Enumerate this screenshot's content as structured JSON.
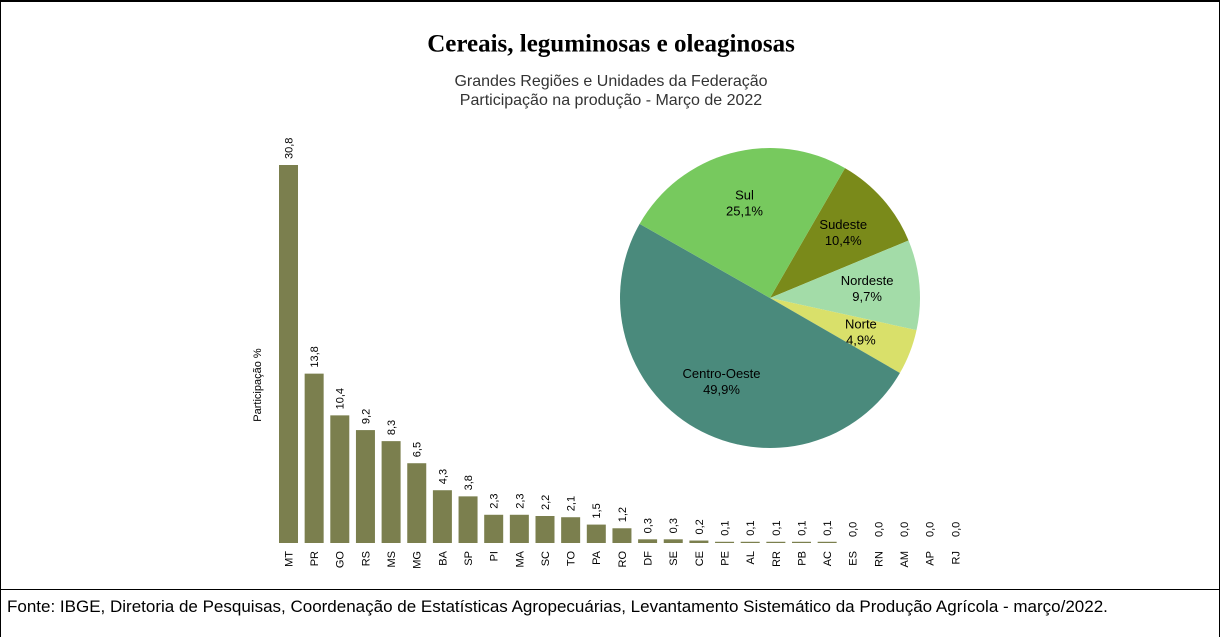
{
  "header": {
    "title": "Cereais, leguminosas e oleaginosas",
    "subtitle": [
      "Grandes Regiões e Unidades da Federação",
      "Participação na produção - Março de 2022"
    ]
  },
  "chart_data": [
    {
      "type": "bar",
      "ylabel": "Participação %",
      "color": "#7b7f4e",
      "categories": [
        "MT",
        "PR",
        "GO",
        "RS",
        "MS",
        "MG",
        "BA",
        "SP",
        "PI",
        "MA",
        "SC",
        "TO",
        "PA",
        "RO",
        "DF",
        "SE",
        "CE",
        "PE",
        "AL",
        "RR",
        "PB",
        "AC",
        "ES",
        "RN",
        "AM",
        "AP",
        "RJ"
      ],
      "values": [
        30.8,
        13.8,
        10.4,
        9.2,
        8.3,
        6.5,
        4.3,
        3.8,
        2.3,
        2.3,
        2.2,
        2.1,
        1.5,
        1.2,
        0.3,
        0.3,
        0.2,
        0.1,
        0.1,
        0.1,
        0.1,
        0.1,
        0.0,
        0.0,
        0.0,
        0.0,
        0.0
      ],
      "value_labels": [
        "30,8",
        "13,8",
        "10,4",
        "9,2",
        "8,3",
        "6,5",
        "4,3",
        "3,8",
        "2,3",
        "2,3",
        "2,2",
        "2,1",
        "1,5",
        "1,2",
        "0,3",
        "0,3",
        "0,2",
        "0,1",
        "0,1",
        "0,1",
        "0,1",
        "0,1",
        "0,0",
        "0,0",
        "0,0",
        "0,0",
        "0,0"
      ]
    },
    {
      "type": "pie",
      "categories": [
        "Sudeste",
        "Nordeste",
        "Norte",
        "Centro-Oeste",
        "Sul"
      ],
      "values": [
        10.4,
        9.7,
        4.9,
        49.9,
        25.1
      ],
      "value_labels": [
        "10,4%",
        "9,7%",
        "4,9%",
        "49,9%",
        "25,1%"
      ],
      "colors": [
        "#7a8a1a",
        "#a3dca8",
        "#d9e06a",
        "#4a8a7c",
        "#77c95e"
      ]
    }
  ],
  "footer": {
    "source": "Fonte: IBGE, Diretoria de Pesquisas, Coordenação de Estatísticas Agropecuárias, Levantamento Sistemático da Produção Agrícola - março/2022."
  }
}
